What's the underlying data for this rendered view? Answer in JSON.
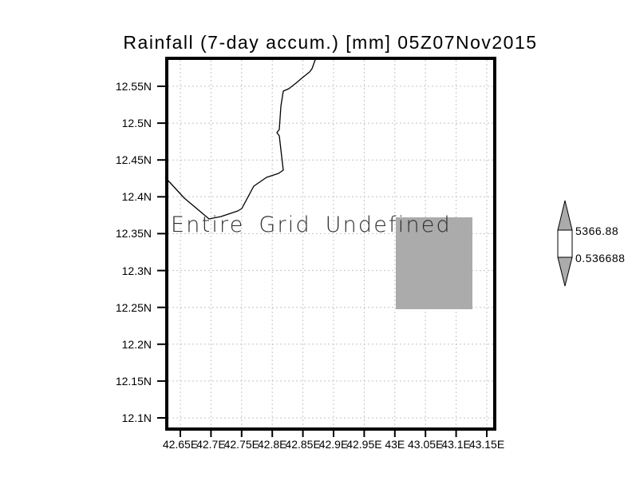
{
  "title": "Rainfall (7-day accum.) [mm] 05Z07Nov2015",
  "plot": {
    "undefined_message": "Entire Grid Undefined",
    "y_tick_labels": [
      "12.55N",
      "12.5N",
      "12.45N",
      "12.4N",
      "12.35N",
      "12.3N",
      "12.25N",
      "12.2N",
      "12.15N",
      "12.1N"
    ],
    "x_tick_labels": [
      "42.65E",
      "42.7E",
      "42.75E",
      "42.8E",
      "42.85E",
      "42.9E",
      "42.95E",
      "43E",
      "43.05E",
      "43.1E",
      "43.15E"
    ]
  },
  "colorbar": {
    "upper_label": "5366.88",
    "lower_label": "0.536688"
  },
  "colors": {
    "undefined_region_fill": "#ababab",
    "colorbar_arrow_fill": "#ababab",
    "gridline": "#c4c4c4",
    "axis": "#000000"
  },
  "chart_data": {
    "type": "heatmap",
    "title": "Rainfall (7-day accum.) [mm] 05Z07Nov2015",
    "status_annotation": "Entire Grid Undefined",
    "x_axis": {
      "tick_labels": [
        "42.65E",
        "42.7E",
        "42.75E",
        "42.8E",
        "42.85E",
        "42.9E",
        "42.95E",
        "43E",
        "43.05E",
        "43.1E",
        "43.15E"
      ],
      "range_deg_east": [
        42.62,
        43.16
      ]
    },
    "y_axis": {
      "tick_labels": [
        "12.55N",
        "12.5N",
        "12.45N",
        "12.4N",
        "12.35N",
        "12.3N",
        "12.25N",
        "12.2N",
        "12.15N",
        "12.1N"
      ],
      "range_deg_north": [
        12.08,
        12.59
      ]
    },
    "grid": true,
    "values": [],
    "colorbar": {
      "orientation": "vertical",
      "min": 0.536688,
      "max": 5366.88,
      "position": "right"
    },
    "gray_no_data_region": {
      "lon_deg_east": [
        43.0,
        43.125
      ],
      "lat_deg_north": [
        12.25,
        12.375
      ]
    },
    "coastline_present": true
  }
}
